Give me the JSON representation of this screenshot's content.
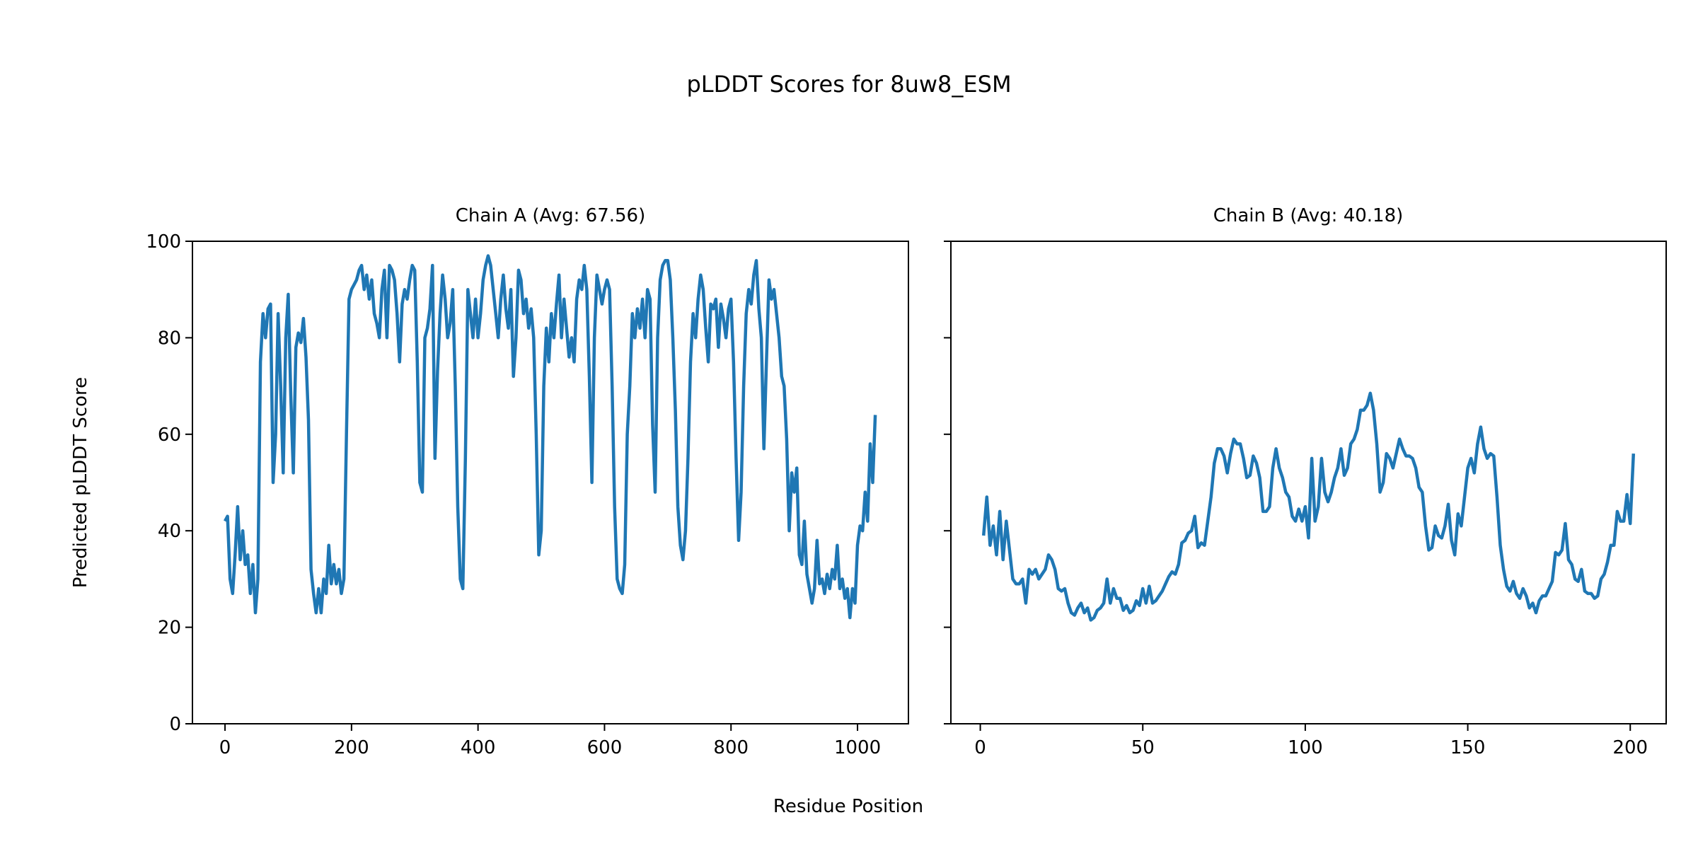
{
  "chart_data": {
    "type": "line",
    "title": "pLDDT Scores for 8uw8_ESM",
    "xlabel": "Residue Position",
    "ylabel": "Predicted pLDDT Score",
    "line_color": "#1f77b4",
    "ylim": [
      0,
      100
    ],
    "yticks": [
      0,
      20,
      40,
      60,
      80,
      100
    ],
    "sharey": true,
    "grid": false,
    "panels": [
      {
        "title": "Chain A (Avg: 67.56)",
        "xlim": [
          -51.5,
          1080.5
        ],
        "xticks": [
          0,
          200,
          400,
          600,
          800,
          1000
        ],
        "x": [
          0,
          4,
          8,
          12,
          16,
          20,
          24,
          28,
          32,
          36,
          40,
          44,
          48,
          52,
          56,
          60,
          64,
          68,
          72,
          76,
          80,
          84,
          88,
          92,
          96,
          100,
          104,
          108,
          112,
          116,
          120,
          124,
          128,
          132,
          136,
          140,
          144,
          148,
          152,
          156,
          160,
          164,
          168,
          172,
          176,
          180,
          184,
          188,
          192,
          196,
          200,
          204,
          208,
          212,
          216,
          220,
          224,
          228,
          232,
          236,
          240,
          244,
          248,
          252,
          256,
          260,
          264,
          268,
          272,
          276,
          280,
          284,
          288,
          292,
          296,
          300,
          304,
          308,
          312,
          316,
          320,
          324,
          328,
          332,
          336,
          340,
          344,
          348,
          352,
          356,
          360,
          364,
          368,
          372,
          376,
          380,
          384,
          388,
          392,
          396,
          400,
          404,
          408,
          412,
          416,
          420,
          424,
          428,
          432,
          436,
          440,
          444,
          448,
          452,
          456,
          460,
          464,
          468,
          472,
          476,
          480,
          484,
          488,
          492,
          496,
          500,
          504,
          508,
          512,
          516,
          520,
          524,
          528,
          532,
          536,
          540,
          544,
          548,
          552,
          556,
          560,
          564,
          568,
          572,
          576,
          580,
          584,
          588,
          592,
          596,
          600,
          604,
          608,
          612,
          616,
          620,
          624,
          628,
          632,
          636,
          640,
          644,
          648,
          652,
          656,
          660,
          664,
          668,
          672,
          676,
          680,
          684,
          688,
          692,
          696,
          700,
          704,
          708,
          712,
          716,
          720,
          724,
          728,
          732,
          736,
          740,
          744,
          748,
          752,
          756,
          760,
          764,
          768,
          772,
          776,
          780,
          784,
          788,
          792,
          796,
          800,
          804,
          808,
          812,
          816,
          820,
          824,
          828,
          832,
          836,
          840,
          844,
          848,
          852,
          856,
          860,
          864,
          868,
          872,
          876,
          880,
          884,
          888,
          892,
          896,
          900,
          904,
          908,
          912,
          916,
          920,
          924,
          928,
          932,
          936,
          940,
          944,
          948,
          952,
          956,
          960,
          964,
          968,
          972,
          976,
          980,
          984,
          988,
          992,
          996,
          1000,
          1004,
          1008,
          1012,
          1016,
          1020,
          1024,
          1028
        ],
        "y": [
          42,
          43,
          30,
          27,
          35,
          45,
          34,
          40,
          33,
          35,
          27,
          33,
          23,
          30,
          75,
          85,
          80,
          86,
          87,
          50,
          60,
          85,
          70,
          52,
          80,
          89,
          68,
          52,
          78,
          81,
          79,
          84,
          76,
          63,
          32,
          27,
          23,
          28,
          23,
          30,
          27,
          37,
          29,
          33,
          29,
          32,
          27,
          30,
          60,
          88,
          90,
          91,
          92,
          94,
          95,
          90,
          93,
          88,
          92,
          85,
          83,
          80,
          90,
          94,
          80,
          95,
          94,
          92,
          85,
          75,
          87,
          90,
          88,
          92,
          95,
          94,
          75,
          50,
          48,
          80,
          82,
          86,
          95,
          55,
          73,
          85,
          93,
          88,
          80,
          83,
          90,
          70,
          45,
          30,
          28,
          55,
          90,
          85,
          80,
          88,
          80,
          85,
          92,
          95,
          97,
          95,
          90,
          85,
          80,
          88,
          93,
          86,
          82,
          90,
          72,
          80,
          94,
          92,
          85,
          88,
          82,
          86,
          80,
          60,
          35,
          40,
          70,
          82,
          75,
          85,
          80,
          87,
          93,
          80,
          88,
          82,
          76,
          80,
          75,
          88,
          92,
          90,
          95,
          90,
          72,
          50,
          80,
          93,
          90,
          87,
          90,
          92,
          90,
          70,
          45,
          30,
          28,
          27,
          33,
          60,
          70,
          85,
          80,
          86,
          82,
          88,
          80,
          90,
          88,
          62,
          48,
          80,
          92,
          95,
          96,
          96,
          92,
          80,
          65,
          45,
          37,
          34,
          40,
          55,
          75,
          85,
          80,
          88,
          93,
          90,
          82,
          75,
          87,
          86,
          88,
          78,
          87,
          84,
          80,
          86,
          88,
          75,
          55,
          38,
          48,
          70,
          85,
          90,
          87,
          93,
          96,
          86,
          80,
          57,
          75,
          92,
          88,
          90,
          85,
          80,
          72,
          70,
          59,
          40,
          52,
          48,
          53,
          35,
          33,
          42,
          31,
          28,
          25,
          28,
          38,
          29,
          30,
          27,
          31,
          28,
          32,
          30,
          37,
          28,
          30,
          26,
          28,
          22,
          28,
          25,
          37,
          41,
          40,
          48,
          42,
          58,
          50,
          64
        ]
      },
      {
        "title": "Chain B (Avg: 40.18)",
        "xlim": [
          -9.05,
          211.05
        ],
        "xticks": [
          0,
          50,
          100,
          150,
          200
        ],
        "x": [
          1,
          2,
          3,
          4,
          5,
          6,
          7,
          8,
          9,
          10,
          11,
          12,
          13,
          14,
          15,
          16,
          17,
          18,
          19,
          20,
          21,
          22,
          23,
          24,
          25,
          26,
          27,
          28,
          29,
          30,
          31,
          32,
          33,
          34,
          35,
          36,
          37,
          38,
          39,
          40,
          41,
          42,
          43,
          44,
          45,
          46,
          47,
          48,
          49,
          50,
          51,
          52,
          53,
          54,
          55,
          56,
          57,
          58,
          59,
          60,
          61,
          62,
          63,
          64,
          65,
          66,
          67,
          68,
          69,
          70,
          71,
          72,
          73,
          74,
          75,
          76,
          77,
          78,
          79,
          80,
          81,
          82,
          83,
          84,
          85,
          86,
          87,
          88,
          89,
          90,
          91,
          92,
          93,
          94,
          95,
          96,
          97,
          98,
          99,
          100,
          101,
          102,
          103,
          104,
          105,
          106,
          107,
          108,
          109,
          110,
          111,
          112,
          113,
          114,
          115,
          116,
          117,
          118,
          119,
          120,
          121,
          122,
          123,
          124,
          125,
          126,
          127,
          128,
          129,
          130,
          131,
          132,
          133,
          134,
          135,
          136,
          137,
          138,
          139,
          140,
          141,
          142,
          143,
          144,
          145,
          146,
          147,
          148,
          149,
          150,
          151,
          152,
          153,
          154,
          155,
          156,
          157,
          158,
          159,
          160,
          161,
          162,
          163,
          164,
          165,
          166,
          167,
          168,
          169,
          170,
          171,
          172,
          173,
          174,
          175,
          176,
          177,
          178,
          179,
          180,
          181,
          182,
          183,
          184,
          185,
          186,
          187,
          188,
          189,
          190,
          191,
          192,
          193,
          194,
          195,
          196,
          197,
          198,
          199,
          200,
          201
        ],
        "y": [
          39,
          47,
          37,
          41,
          35,
          44,
          34,
          42,
          36,
          30,
          29,
          29,
          30,
          25,
          32,
          31,
          32,
          30,
          31,
          32,
          35,
          34,
          32,
          28,
          27.5,
          28,
          25,
          23,
          22.5,
          24,
          25,
          23,
          24,
          21.5,
          22,
          23.5,
          24,
          25,
          30,
          25,
          28,
          26,
          26,
          23.5,
          24.5,
          23,
          23.5,
          25.5,
          24.5,
          28,
          25,
          28.5,
          25,
          25.5,
          26.5,
          27.5,
          29,
          30.5,
          31.5,
          31,
          33,
          37.5,
          38,
          39.5,
          40,
          43,
          36.5,
          37.5,
          37,
          42,
          47,
          54,
          57,
          57,
          55.5,
          52,
          56,
          59,
          58,
          58,
          55,
          51,
          51.5,
          55.5,
          54,
          51,
          44,
          44,
          45,
          53,
          57,
          53,
          51,
          48,
          47,
          43,
          42,
          44.5,
          42,
          45,
          38.5,
          55,
          42,
          45,
          55,
          48,
          46,
          48,
          51,
          53,
          57,
          51.5,
          53,
          58,
          59,
          61,
          65,
          65,
          66,
          68.5,
          65,
          58,
          48,
          50,
          56,
          55,
          53,
          56,
          59,
          57,
          55.5,
          55.5,
          55,
          53,
          49,
          48,
          41,
          36,
          36.5,
          41,
          39,
          38.5,
          41,
          45.5,
          38,
          35,
          43.5,
          41,
          47,
          53,
          55,
          52,
          58,
          61.5,
          57,
          55,
          56,
          55.5,
          47,
          37,
          32,
          28.5,
          27.5,
          29.5,
          27,
          26,
          28,
          26.5,
          24,
          25,
          23,
          25.5,
          26.5,
          26.5,
          28,
          29.5,
          35.5,
          35,
          36,
          41.5,
          34,
          33,
          30,
          29.5,
          32,
          27.5,
          27,
          27,
          26,
          26.5,
          30,
          31,
          33.5,
          37,
          37,
          44,
          42,
          42,
          47.5,
          41.5,
          56
        ]
      }
    ]
  }
}
